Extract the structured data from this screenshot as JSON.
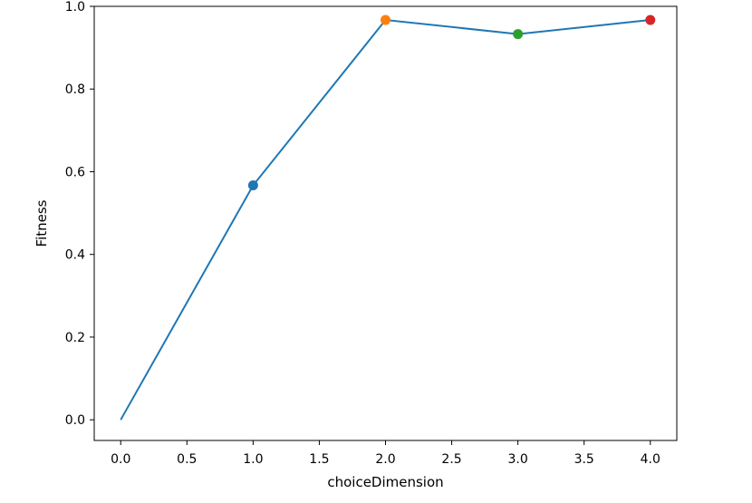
{
  "chart_data": {
    "type": "line",
    "title": "",
    "xlabel": "choiceDimension",
    "ylabel": "Fitness",
    "xlim": [
      -0.2,
      4.2
    ],
    "ylim": [
      -0.05,
      1.0
    ],
    "grid": false,
    "x_ticks": [
      0.0,
      0.5,
      1.0,
      1.5,
      2.0,
      2.5,
      3.0,
      3.5,
      4.0
    ],
    "x_tick_labels": [
      "0.0",
      "0.5",
      "1.0",
      "1.5",
      "2.0",
      "2.5",
      "3.0",
      "3.5",
      "4.0"
    ],
    "y_ticks": [
      0.0,
      0.2,
      0.4,
      0.6,
      0.8,
      1.0
    ],
    "y_tick_labels": [
      "0.0",
      "0.2",
      "0.4",
      "0.6",
      "0.8",
      "1.0"
    ],
    "line": {
      "x": [
        0,
        1,
        2,
        3,
        4
      ],
      "y": [
        0.0,
        0.567,
        0.967,
        0.933,
        0.967
      ],
      "color": "#1f77b4"
    },
    "markers": [
      {
        "x": 1,
        "y": 0.567,
        "color": "#1f77b4"
      },
      {
        "x": 2,
        "y": 0.967,
        "color": "#ff7f0e"
      },
      {
        "x": 3,
        "y": 0.933,
        "color": "#2ca02c"
      },
      {
        "x": 4,
        "y": 0.967,
        "color": "#d62728"
      }
    ]
  }
}
